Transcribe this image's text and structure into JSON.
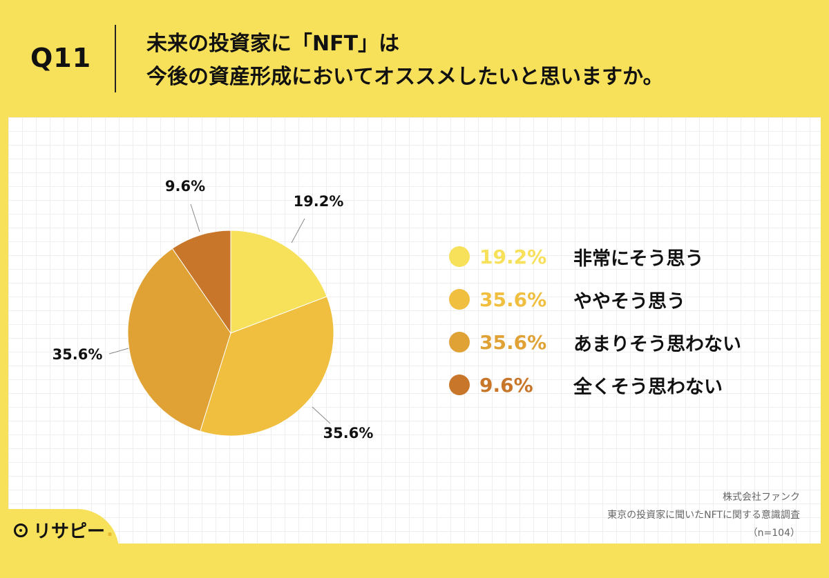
{
  "header": {
    "q_label": "Q11",
    "title_line1": "未来の投資家に「NFT」は",
    "title_line2": "今後の資産形成においてオススメしたいと思いますか。"
  },
  "chart_data": {
    "type": "pie",
    "slices": [
      {
        "label": "非常にそう思う",
        "value": 19.2,
        "display": "19.2%",
        "color": "#f7e05a"
      },
      {
        "label": "ややそう思う",
        "value": 35.6,
        "display": "35.6%",
        "color": "#f0bf40"
      },
      {
        "label": "あまりそう思わない",
        "value": 35.6,
        "display": "35.6%",
        "color": "#e0a235"
      },
      {
        "label": "全くそう思わない",
        "value": 9.6,
        "display": "9.6%",
        "color": "#c8762a"
      }
    ],
    "legend_position": "right"
  },
  "source": {
    "line1": "株式会社ファンク",
    "line2": "東京の投資家に聞いたNFTに関する意識調査",
    "line3": "（n=104）"
  },
  "logo": {
    "text": "リサピー",
    "dot": "."
  }
}
